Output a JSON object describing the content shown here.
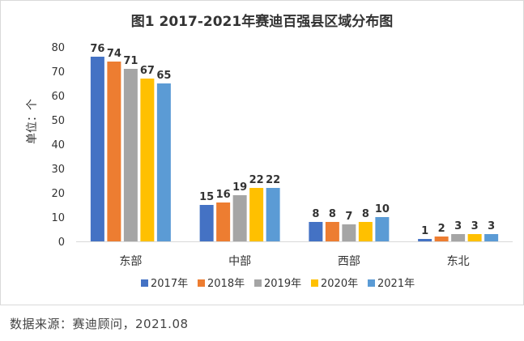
{
  "source_note": "数据来源：赛迪顾问，2021.08",
  "chart_data": {
    "type": "bar",
    "title": "图1 2017-2021年赛迪百强县区域分布图",
    "ylabel": "单位：个",
    "xlabel": "",
    "ylim": [
      0,
      80
    ],
    "yticks": [
      0,
      10,
      20,
      30,
      40,
      50,
      60,
      70,
      80
    ],
    "categories": [
      "东部",
      "中部",
      "西部",
      "东北"
    ],
    "series": [
      {
        "name": "2017年",
        "color": "#4472c4",
        "values": [
          76,
          15,
          8,
          1
        ]
      },
      {
        "name": "2018年",
        "color": "#ed7d31",
        "values": [
          74,
          16,
          8,
          2
        ]
      },
      {
        "name": "2019年",
        "color": "#a5a5a5",
        "values": [
          71,
          19,
          7,
          3
        ]
      },
      {
        "name": "2020年",
        "color": "#ffc000",
        "values": [
          67,
          22,
          8,
          3
        ]
      },
      {
        "name": "2021年",
        "color": "#5b9bd5",
        "values": [
          65,
          22,
          10,
          3
        ]
      }
    ],
    "grid": false,
    "legend_position": "bottom",
    "data_labels": true
  }
}
